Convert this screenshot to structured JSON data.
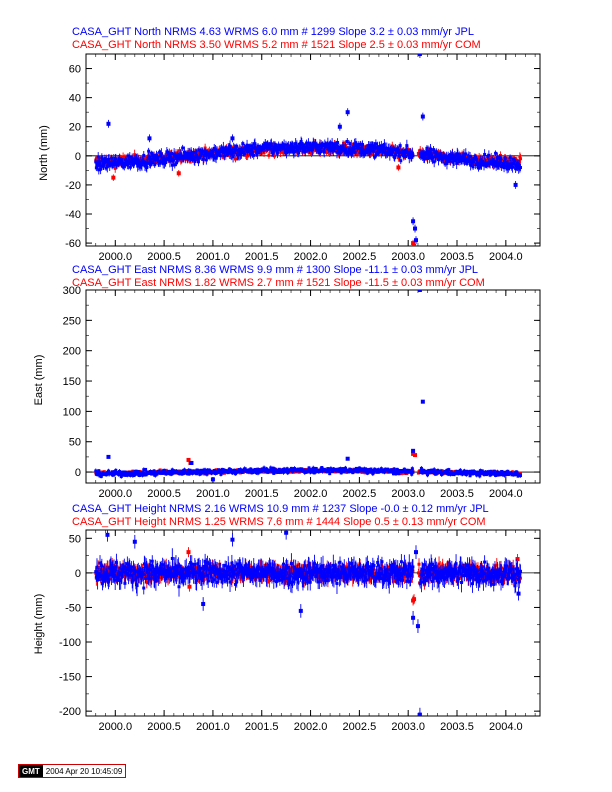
{
  "colors": {
    "jpl": "#0000ff",
    "com": "#ff0000",
    "axis": "#000000",
    "zero": "#000000"
  },
  "footer": {
    "logo": "GMT",
    "timestamp": "2004 Apr 20 10:45:09"
  },
  "chart_data": [
    {
      "type": "scatter",
      "component": "North",
      "ylabel": "North (mm)",
      "xlabel": "",
      "xlim": [
        1999.7,
        2004.35
      ],
      "ylim": [
        -62,
        70
      ],
      "xticks": [
        2000.0,
        2000.5,
        2001.0,
        2001.5,
        2002.0,
        2002.5,
        2003.0,
        2003.5,
        2004.0
      ],
      "xtick_labels": [
        "2000.0",
        "2000.5",
        "2001.0",
        "2001.5",
        "2002.0",
        "2002.5",
        "2003.0",
        "2003.5",
        "2004.0"
      ],
      "yticks": [
        -60,
        -40,
        -20,
        0,
        20,
        40,
        60
      ],
      "ytick_labels": [
        "-60",
        "-40",
        "-20",
        "0",
        "20",
        "40",
        "60"
      ],
      "series": [
        {
          "name": "JPL",
          "header": "CASA_GHT North NRMS 4.63 WRMS  6.0 mm # 1299 Slope    3.2 ±  0.03 mm/yr JPL",
          "nrms": 4.63,
          "wrms_mm": 6.0,
          "n": 1299,
          "slope_mm_yr": 3.2,
          "slope_err": 0.03,
          "span": [
            1999.8,
            2004.15
          ],
          "wave": {
            "amp": 6,
            "center": 2002.0,
            "period": 5.0
          },
          "noise": 3.0,
          "gaps": [
            [
              2003.05,
              2003.12
            ]
          ],
          "outliers": [
            [
              1999.93,
              22
            ],
            [
              2002.38,
              30
            ],
            [
              2003.05,
              -45
            ],
            [
              2003.07,
              -50
            ],
            [
              2003.08,
              -58
            ],
            [
              2003.12,
              70
            ],
            [
              2003.15,
              27
            ],
            [
              2002.3,
              20
            ],
            [
              2004.1,
              -20
            ],
            [
              2001.2,
              12
            ],
            [
              2000.35,
              12
            ]
          ]
        },
        {
          "name": "COM",
          "header": "CASA_GHT North NRMS 3.50 WRMS  5.2 mm # 1521 Slope    2.5 ±  0.03 mm/yr COM",
          "nrms": 3.5,
          "wrms_mm": 5.2,
          "n": 1521,
          "slope_mm_yr": 2.5,
          "slope_err": 0.03,
          "span": [
            1999.8,
            2004.15
          ],
          "wave": {
            "amp": 5,
            "center": 2002.0,
            "period": 5.0
          },
          "noise": 2.5,
          "gaps": [
            [
              2003.05,
              2003.1
            ]
          ],
          "outliers": [
            [
              2003.05,
              -60
            ],
            [
              2003.06,
              -62
            ],
            [
              1999.98,
              -15
            ],
            [
              2000.65,
              -12
            ],
            [
              2002.9,
              -8
            ]
          ]
        }
      ]
    },
    {
      "type": "scatter",
      "component": "East",
      "ylabel": "East (mm)",
      "xlabel": "",
      "xlim": [
        1999.7,
        2004.35
      ],
      "ylim": [
        -18,
        300
      ],
      "xticks": [
        2000.0,
        2000.5,
        2001.0,
        2001.5,
        2002.0,
        2002.5,
        2003.0,
        2003.5,
        2004.0
      ],
      "xtick_labels": [
        "2000.0",
        "2000.5",
        "2001.0",
        "2001.5",
        "2002.0",
        "2002.5",
        "2003.0",
        "2003.5",
        "2004.0"
      ],
      "yticks": [
        0,
        50,
        100,
        150,
        200,
        250,
        300
      ],
      "ytick_labels": [
        "0",
        "50",
        "100",
        "150",
        "200",
        "250",
        "300"
      ],
      "series": [
        {
          "name": "JPL",
          "header": "CASA_GHT East NRMS 8.36 WRMS  9.9 mm # 1300 Slope  -11.1 ±  0.03 mm/yr JPL",
          "nrms": 8.36,
          "wrms_mm": 9.9,
          "n": 1300,
          "slope_mm_yr": -11.1,
          "slope_err": 0.03,
          "span": [
            1999.8,
            2004.15
          ],
          "wave": {
            "amp": 3,
            "center": 2002.0,
            "period": 5.0
          },
          "noise": 3.0,
          "gaps": [
            [
              2003.05,
              2003.12
            ]
          ],
          "outliers": [
            [
              1999.93,
              25
            ],
            [
              2002.38,
              22
            ],
            [
              2003.05,
              35
            ],
            [
              2003.12,
              300
            ],
            [
              2003.15,
              116
            ],
            [
              2000.78,
              15
            ],
            [
              2001.0,
              -12
            ]
          ]
        },
        {
          "name": "COM",
          "header": "CASA_GHT East NRMS 1.82 WRMS  2.7 mm # 1521 Slope  -11.5 ±  0.03 mm/yr COM",
          "nrms": 1.82,
          "wrms_mm": 2.7,
          "n": 1521,
          "slope_mm_yr": -11.5,
          "slope_err": 0.03,
          "span": [
            1999.8,
            2004.15
          ],
          "wave": {
            "amp": 2,
            "center": 2002.0,
            "period": 5.0
          },
          "noise": 2.0,
          "gaps": [
            [
              2003.05,
              2003.1
            ]
          ],
          "outliers": [
            [
              2000.75,
              20
            ],
            [
              2000.77,
              15
            ],
            [
              2003.05,
              30
            ],
            [
              2003.07,
              28
            ]
          ]
        }
      ]
    },
    {
      "type": "scatter",
      "component": "Height",
      "ylabel": "Height (mm)",
      "xlabel": "",
      "xlim": [
        1999.7,
        2004.35
      ],
      "ylim": [
        -207,
        62
      ],
      "xticks": [
        2000.0,
        2000.5,
        2001.0,
        2001.5,
        2002.0,
        2002.5,
        2003.0,
        2003.5,
        2004.0
      ],
      "xtick_labels": [
        "2000.0",
        "2000.5",
        "2001.0",
        "2001.5",
        "2002.0",
        "2002.5",
        "2003.0",
        "2003.5",
        "2004.0"
      ],
      "yticks": [
        -200,
        -150,
        -100,
        -50,
        0,
        50
      ],
      "ytick_labels": [
        "-200",
        "-150",
        "-100",
        "-50",
        "0",
        "50"
      ],
      "series": [
        {
          "name": "JPL",
          "header": "CASA_GHT Height NRMS 2.16 WRMS 10.9 mm # 1237 Slope   -0.0 ±  0.12 mm/yr JPL",
          "nrms": 2.16,
          "wrms_mm": 10.9,
          "n": 1237,
          "slope_mm_yr": -0.0,
          "slope_err": 0.12,
          "span": [
            1999.8,
            2004.15
          ],
          "wave": {
            "amp": 0,
            "center": 2002.0,
            "period": 5.0
          },
          "noise": 11.0,
          "gaps": [
            [
              2003.05,
              2003.12
            ]
          ],
          "outliers": [
            [
              1999.92,
              55
            ],
            [
              2000.2,
              45
            ],
            [
              2000.9,
              -45
            ],
            [
              2001.2,
              48
            ],
            [
              2001.75,
              58
            ],
            [
              2001.9,
              -55
            ],
            [
              2003.05,
              -65
            ],
            [
              2003.1,
              -77
            ],
            [
              2003.12,
              -205
            ],
            [
              2003.08,
              30
            ],
            [
              2004.13,
              -30
            ]
          ]
        },
        {
          "name": "COM",
          "header": "CASA_GHT Height NRMS 1.25 WRMS  7.6 mm # 1444 Slope    0.5 ±  0.13 mm/yr COM",
          "nrms": 1.25,
          "wrms_mm": 7.6,
          "n": 1444,
          "slope_mm_yr": 0.5,
          "slope_err": 0.13,
          "span": [
            1999.8,
            2004.15
          ],
          "wave": {
            "amp": 0,
            "center": 2002.0,
            "period": 5.0
          },
          "noise": 8.0,
          "gaps": [
            [
              2003.05,
              2003.1
            ]
          ],
          "outliers": [
            [
              2000.75,
              30
            ],
            [
              2000.76,
              -20
            ],
            [
              2003.05,
              -40
            ],
            [
              2003.06,
              -38
            ],
            [
              2004.12,
              20
            ]
          ]
        }
      ]
    }
  ]
}
